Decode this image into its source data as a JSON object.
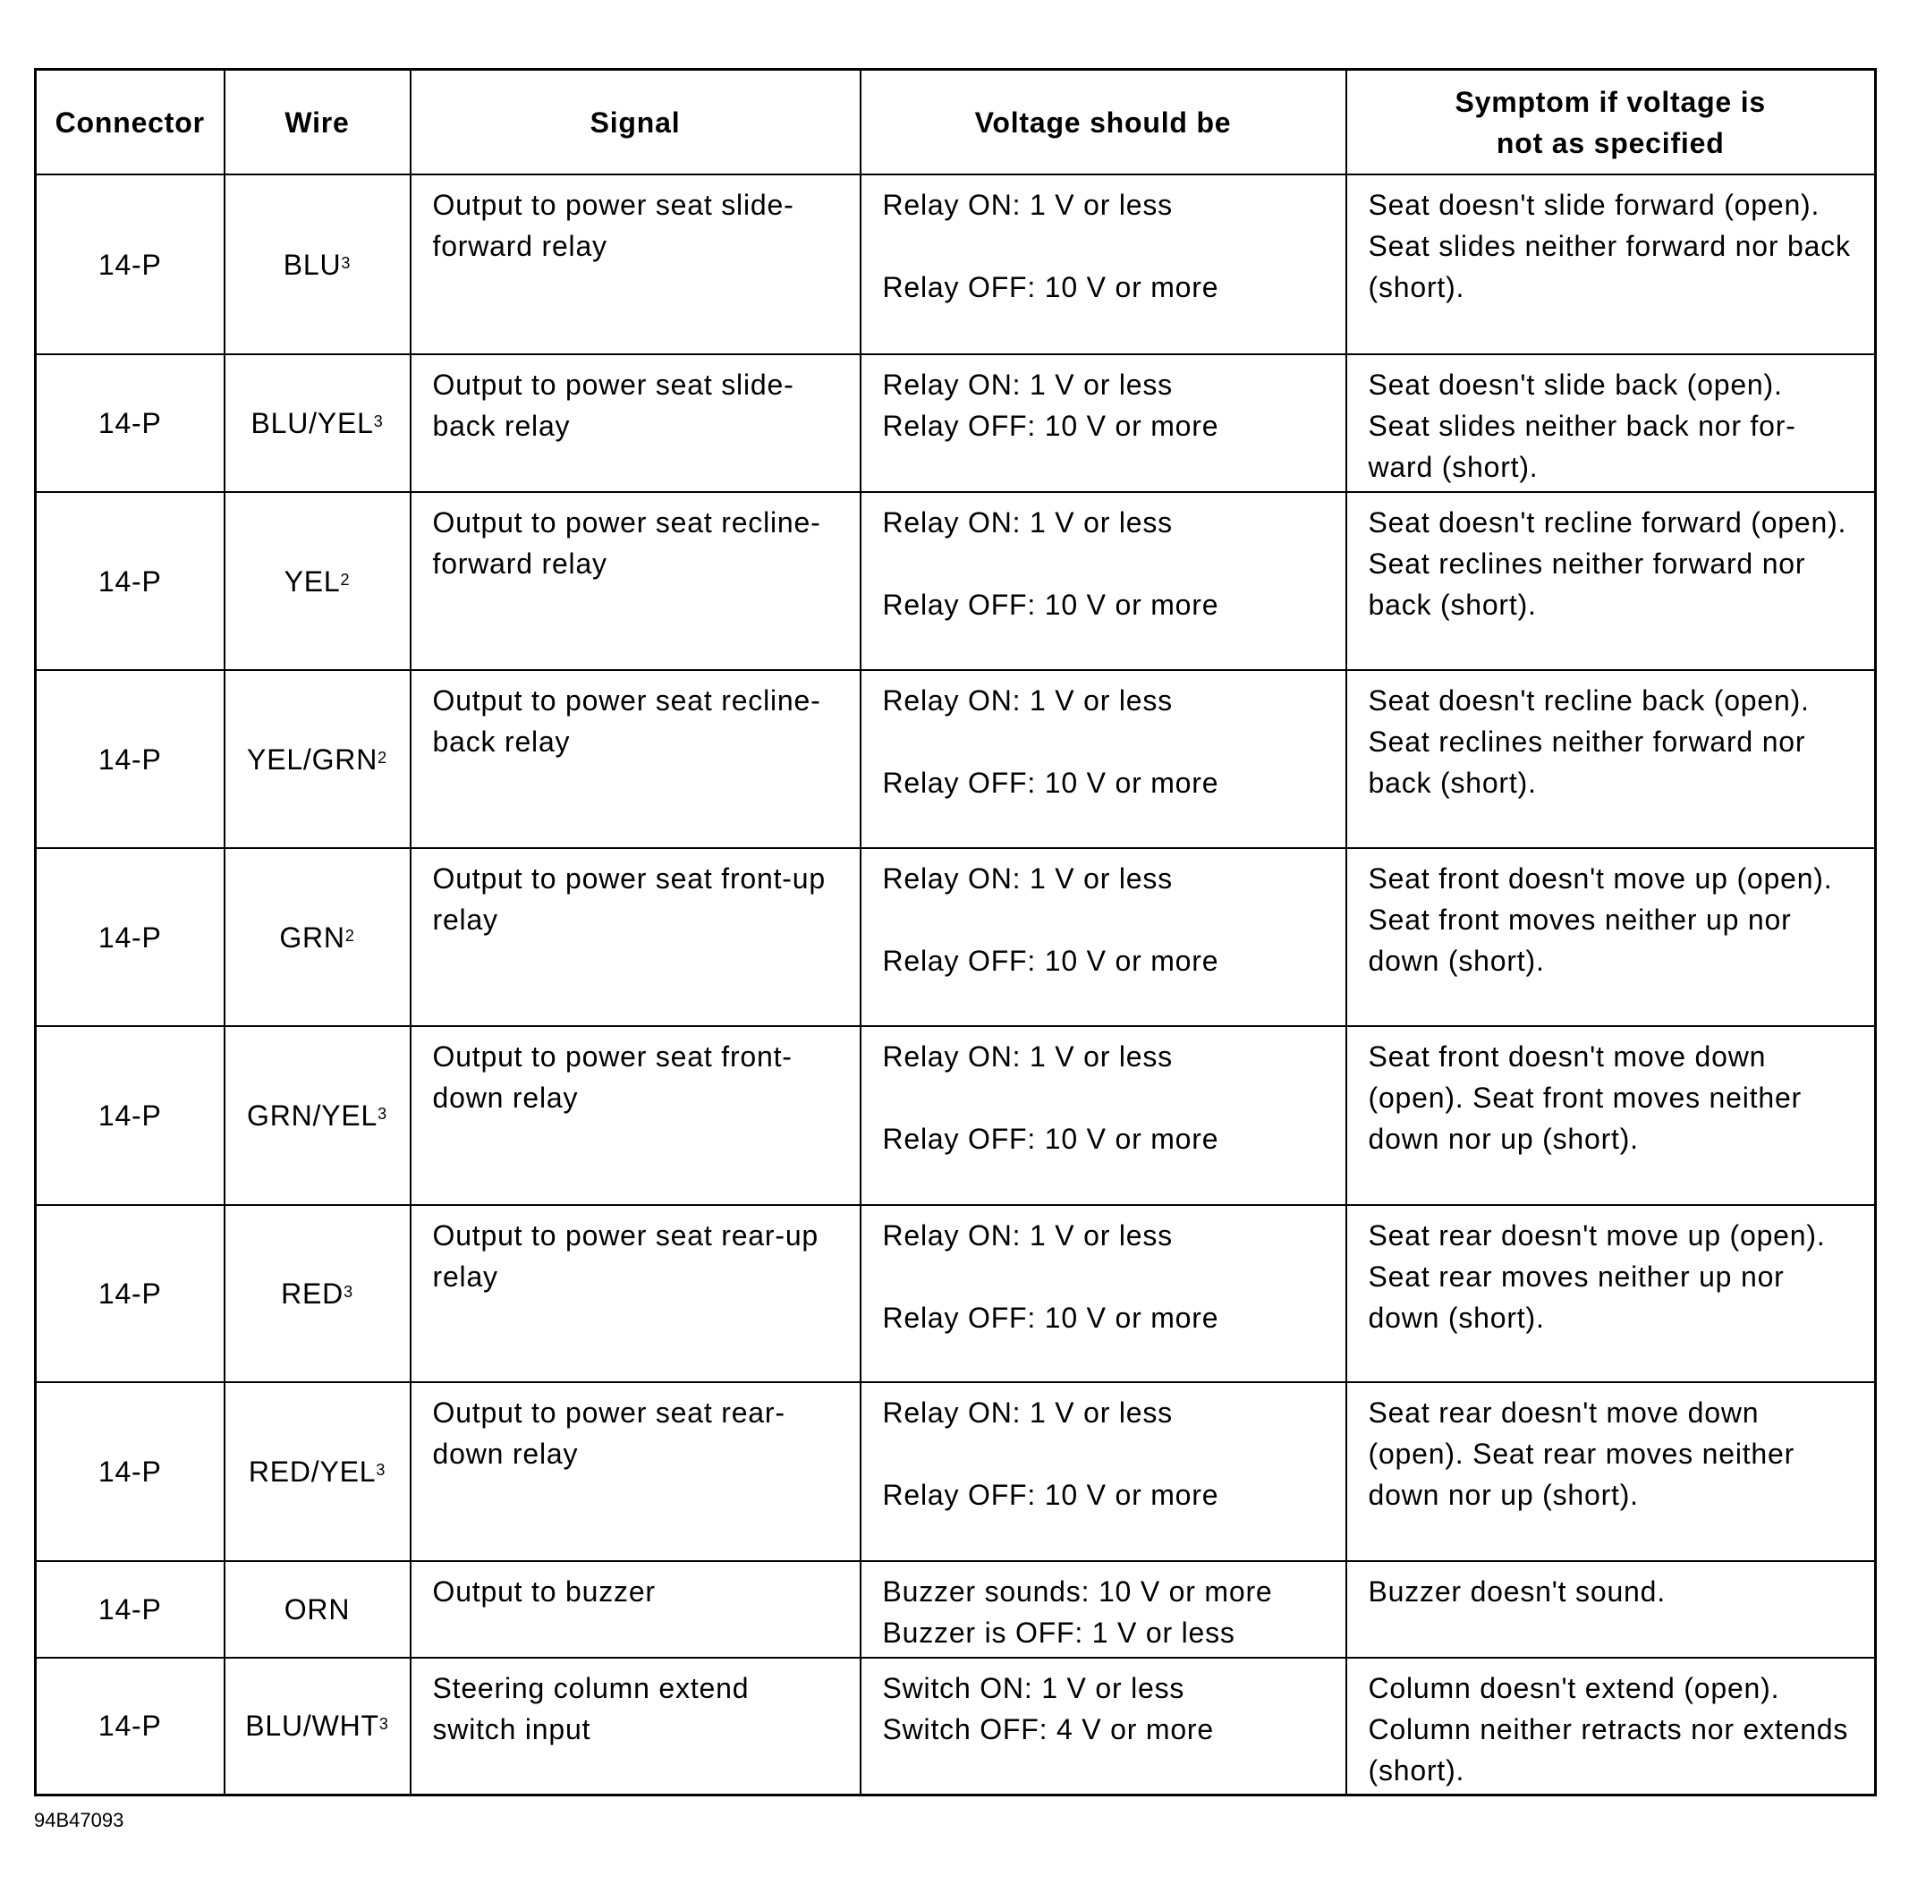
{
  "headers": [
    "Connector",
    "Wire",
    "Signal",
    "Voltage should be",
    "Symptom if voltage is not as specified"
  ],
  "rows": [
    {
      "connector": "14-P",
      "wire": "BLU",
      "note": "3",
      "signal": "Output to power seat slide-forward relay",
      "v1": "Relay ON: 1 V or less",
      "v2": "Relay OFF: 10 V or more",
      "symptom": "Seat doesn't slide forward (open). Seat slides neither forward nor back (short)."
    },
    {
      "connector": "14-P",
      "wire": "BLU/YEL",
      "note": "3",
      "signal": "Output to power seat slide-back relay",
      "v1": "Relay ON: 1 V or less",
      "v2": "Relay OFF: 10 V or more",
      "symptom": "Seat doesn't slide back (open). Seat slides neither back nor for-ward (short)."
    },
    {
      "connector": "14-P",
      "wire": "YEL",
      "note": "2",
      "signal": "Output to power seat recline-forward relay",
      "v1": "Relay ON: 1 V or less",
      "v2": "Relay OFF: 10 V or more",
      "symptom": "Seat doesn't recline forward (open). Seat reclines neither forward nor back (short)."
    },
    {
      "connector": "14-P",
      "wire": "YEL/GRN",
      "note": "2",
      "signal": "Output to power seat recline-back relay",
      "v1": "Relay ON: 1 V or less",
      "v2": "Relay OFF: 10 V or more",
      "symptom": "Seat doesn't recline back (open). Seat reclines neither forward nor back (short)."
    },
    {
      "connector": "14-P",
      "wire": "GRN",
      "note": "2",
      "signal": "Output to power seat front-up relay",
      "v1": "Relay ON: 1 V or less",
      "v2": "Relay OFF: 10 V or more",
      "symptom": "Seat front doesn't move up (open). Seat front moves neither up nor down (short)."
    },
    {
      "connector": "14-P",
      "wire": "GRN/YEL",
      "note": "3",
      "signal": "Output to power seat front-down relay",
      "v1": "Relay ON: 1 V or less",
      "v2": "Relay OFF: 10 V or more",
      "symptom": "Seat front doesn't move down (open). Seat front moves neither down nor up (short)."
    },
    {
      "connector": "14-P",
      "wire": "RED",
      "note": "3",
      "signal": "Output to power seat rear-up relay",
      "v1": "Relay ON: 1 V or less",
      "v2": "Relay OFF: 10 V or more",
      "symptom": "Seat rear doesn't move up (open). Seat rear moves neither up nor down (short)."
    },
    {
      "connector": "14-P",
      "wire": "RED/YEL",
      "note": "3",
      "signal": "Output to power seat rear-down relay",
      "v1": "Relay ON: 1 V or less",
      "v2": "Relay OFF: 10 V or more",
      "symptom": "Seat rear doesn't move down (open). Seat rear moves neither down nor up (short)."
    },
    {
      "connector": "14-P",
      "wire": "ORN",
      "note": "",
      "signal": "Output to buzzer",
      "v1": "Buzzer sounds: 10 V or more",
      "v2": "Buzzer is OFF: 1 V or less",
      "symptom": "Buzzer doesn't sound."
    },
    {
      "connector": "14-P",
      "wire": "BLU/WHT",
      "note": "3",
      "signal": "Steering column extend switch input",
      "v1": "Switch ON: 1 V or less",
      "v2": "Switch OFF: 4 V or more",
      "symptom": "Column doesn't extend (open). Column neither retracts nor extends (short)."
    }
  ],
  "figure_code": "94B47093"
}
